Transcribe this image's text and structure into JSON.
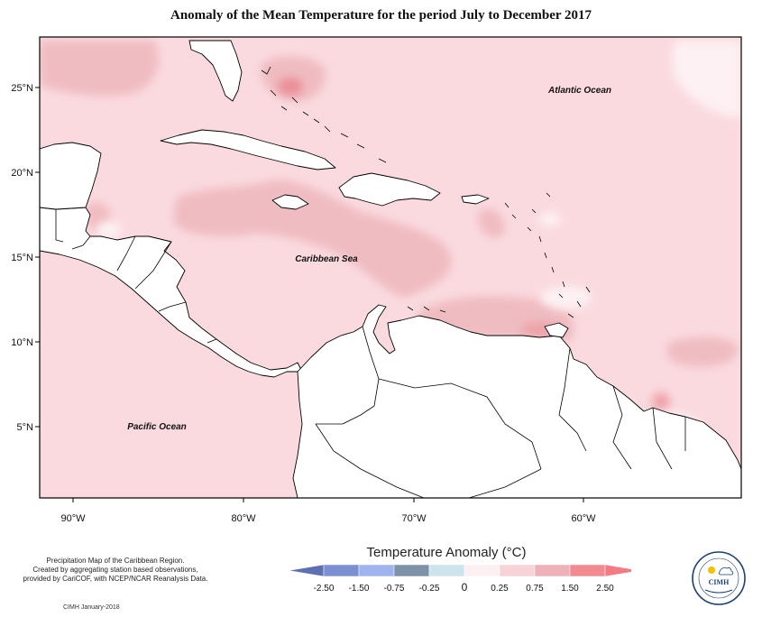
{
  "title": "Anomaly of the Mean Temperature for the period July to December 2017",
  "map": {
    "labels": {
      "atlantic": "Atlantic Ocean",
      "caribbean": "Caribbean Sea",
      "pacific": "Pacific Ocean"
    },
    "lat_ticks": [
      "25°N",
      "20°N",
      "15°N",
      "10°N",
      "5°N"
    ],
    "lon_ticks": [
      "90°W",
      "80°W",
      "70°W",
      "60°W"
    ],
    "extent": {
      "lon_min": -92,
      "lon_max": -51,
      "lat_min": 1,
      "lat_max": 28
    },
    "colors": {
      "land": "#ffffff",
      "sea_base": "#fadadf",
      "warm_0_75": "#eeb7bd",
      "warm_1_5": "#ec9099",
      "cool": "#cfe5ee",
      "neutral": "#fbecef"
    }
  },
  "legend": {
    "title": "Temperature Anomaly (°C)",
    "ticks": [
      "-2.50",
      "-1.50",
      "-0.75",
      "-0.25",
      "0",
      "0.25",
      "0.75",
      "1.50",
      "2.50"
    ],
    "colors": [
      "#5f6fb3",
      "#7c8fd1",
      "#9fb3ee",
      "#7e93a8",
      "#cde4ec",
      "#fdf0f2",
      "#f7d3d8",
      "#eeb1b7",
      "#f38a92",
      "#f47b84"
    ]
  },
  "credit": {
    "lines": [
      "Precipitation Map of the Caribbean Region.",
      "Created by aggregating station based observations,",
      "provided by CariCOF, with NCEP/NCAR Reanalysis Data."
    ],
    "date": "CIMH January-2018"
  },
  "logo": {
    "text": "CIMH"
  }
}
